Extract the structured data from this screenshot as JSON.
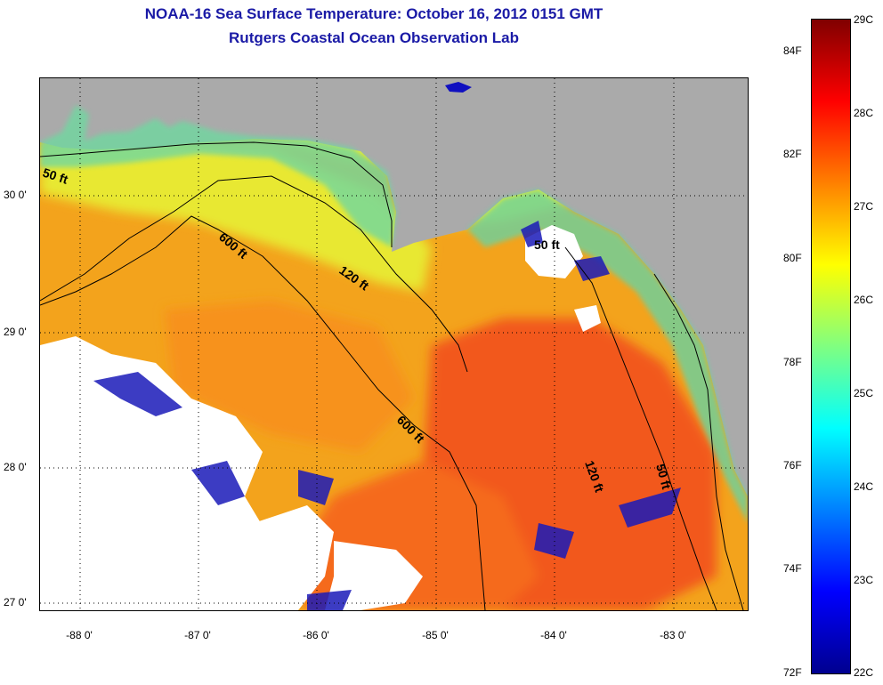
{
  "header": {
    "title": "NOAA-16 Sea Surface Temperature:  October 16, 2012 0151 GMT",
    "subtitle": "Rutgers Coastal Ocean Observation Lab"
  },
  "map": {
    "latitude_labels": [
      "30 0'",
      "29 0'",
      "28 0'",
      "27 0'"
    ],
    "longitude_labels": [
      "-88 0'",
      "-87 0'",
      "-86 0'",
      "-85 0'",
      "-84 0'",
      "-83 0'"
    ],
    "contour_labels": [
      "50 ft",
      "600 ft",
      "120 ft",
      "600 ft",
      "120 ft",
      "50 ft",
      "50 ft"
    ],
    "colors": {
      "land": "#aaaaaa",
      "cloud": "#ffffff",
      "contour": "#000000",
      "title": "#1a1aa6"
    }
  },
  "colorbar": {
    "celsius_labels": [
      "29C",
      "28C",
      "27C",
      "26C",
      "25C",
      "24C",
      "23C",
      "22C"
    ],
    "fahrenheit_labels": [
      "84F",
      "82F",
      "80F",
      "78F",
      "76F",
      "74F",
      "72F"
    ],
    "range_c": [
      22,
      29
    ],
    "colors": [
      "#00008f",
      "#0000ff",
      "#0080ff",
      "#00ffff",
      "#80ff80",
      "#ffff00",
      "#ff8000",
      "#ff0000",
      "#800000"
    ]
  }
}
